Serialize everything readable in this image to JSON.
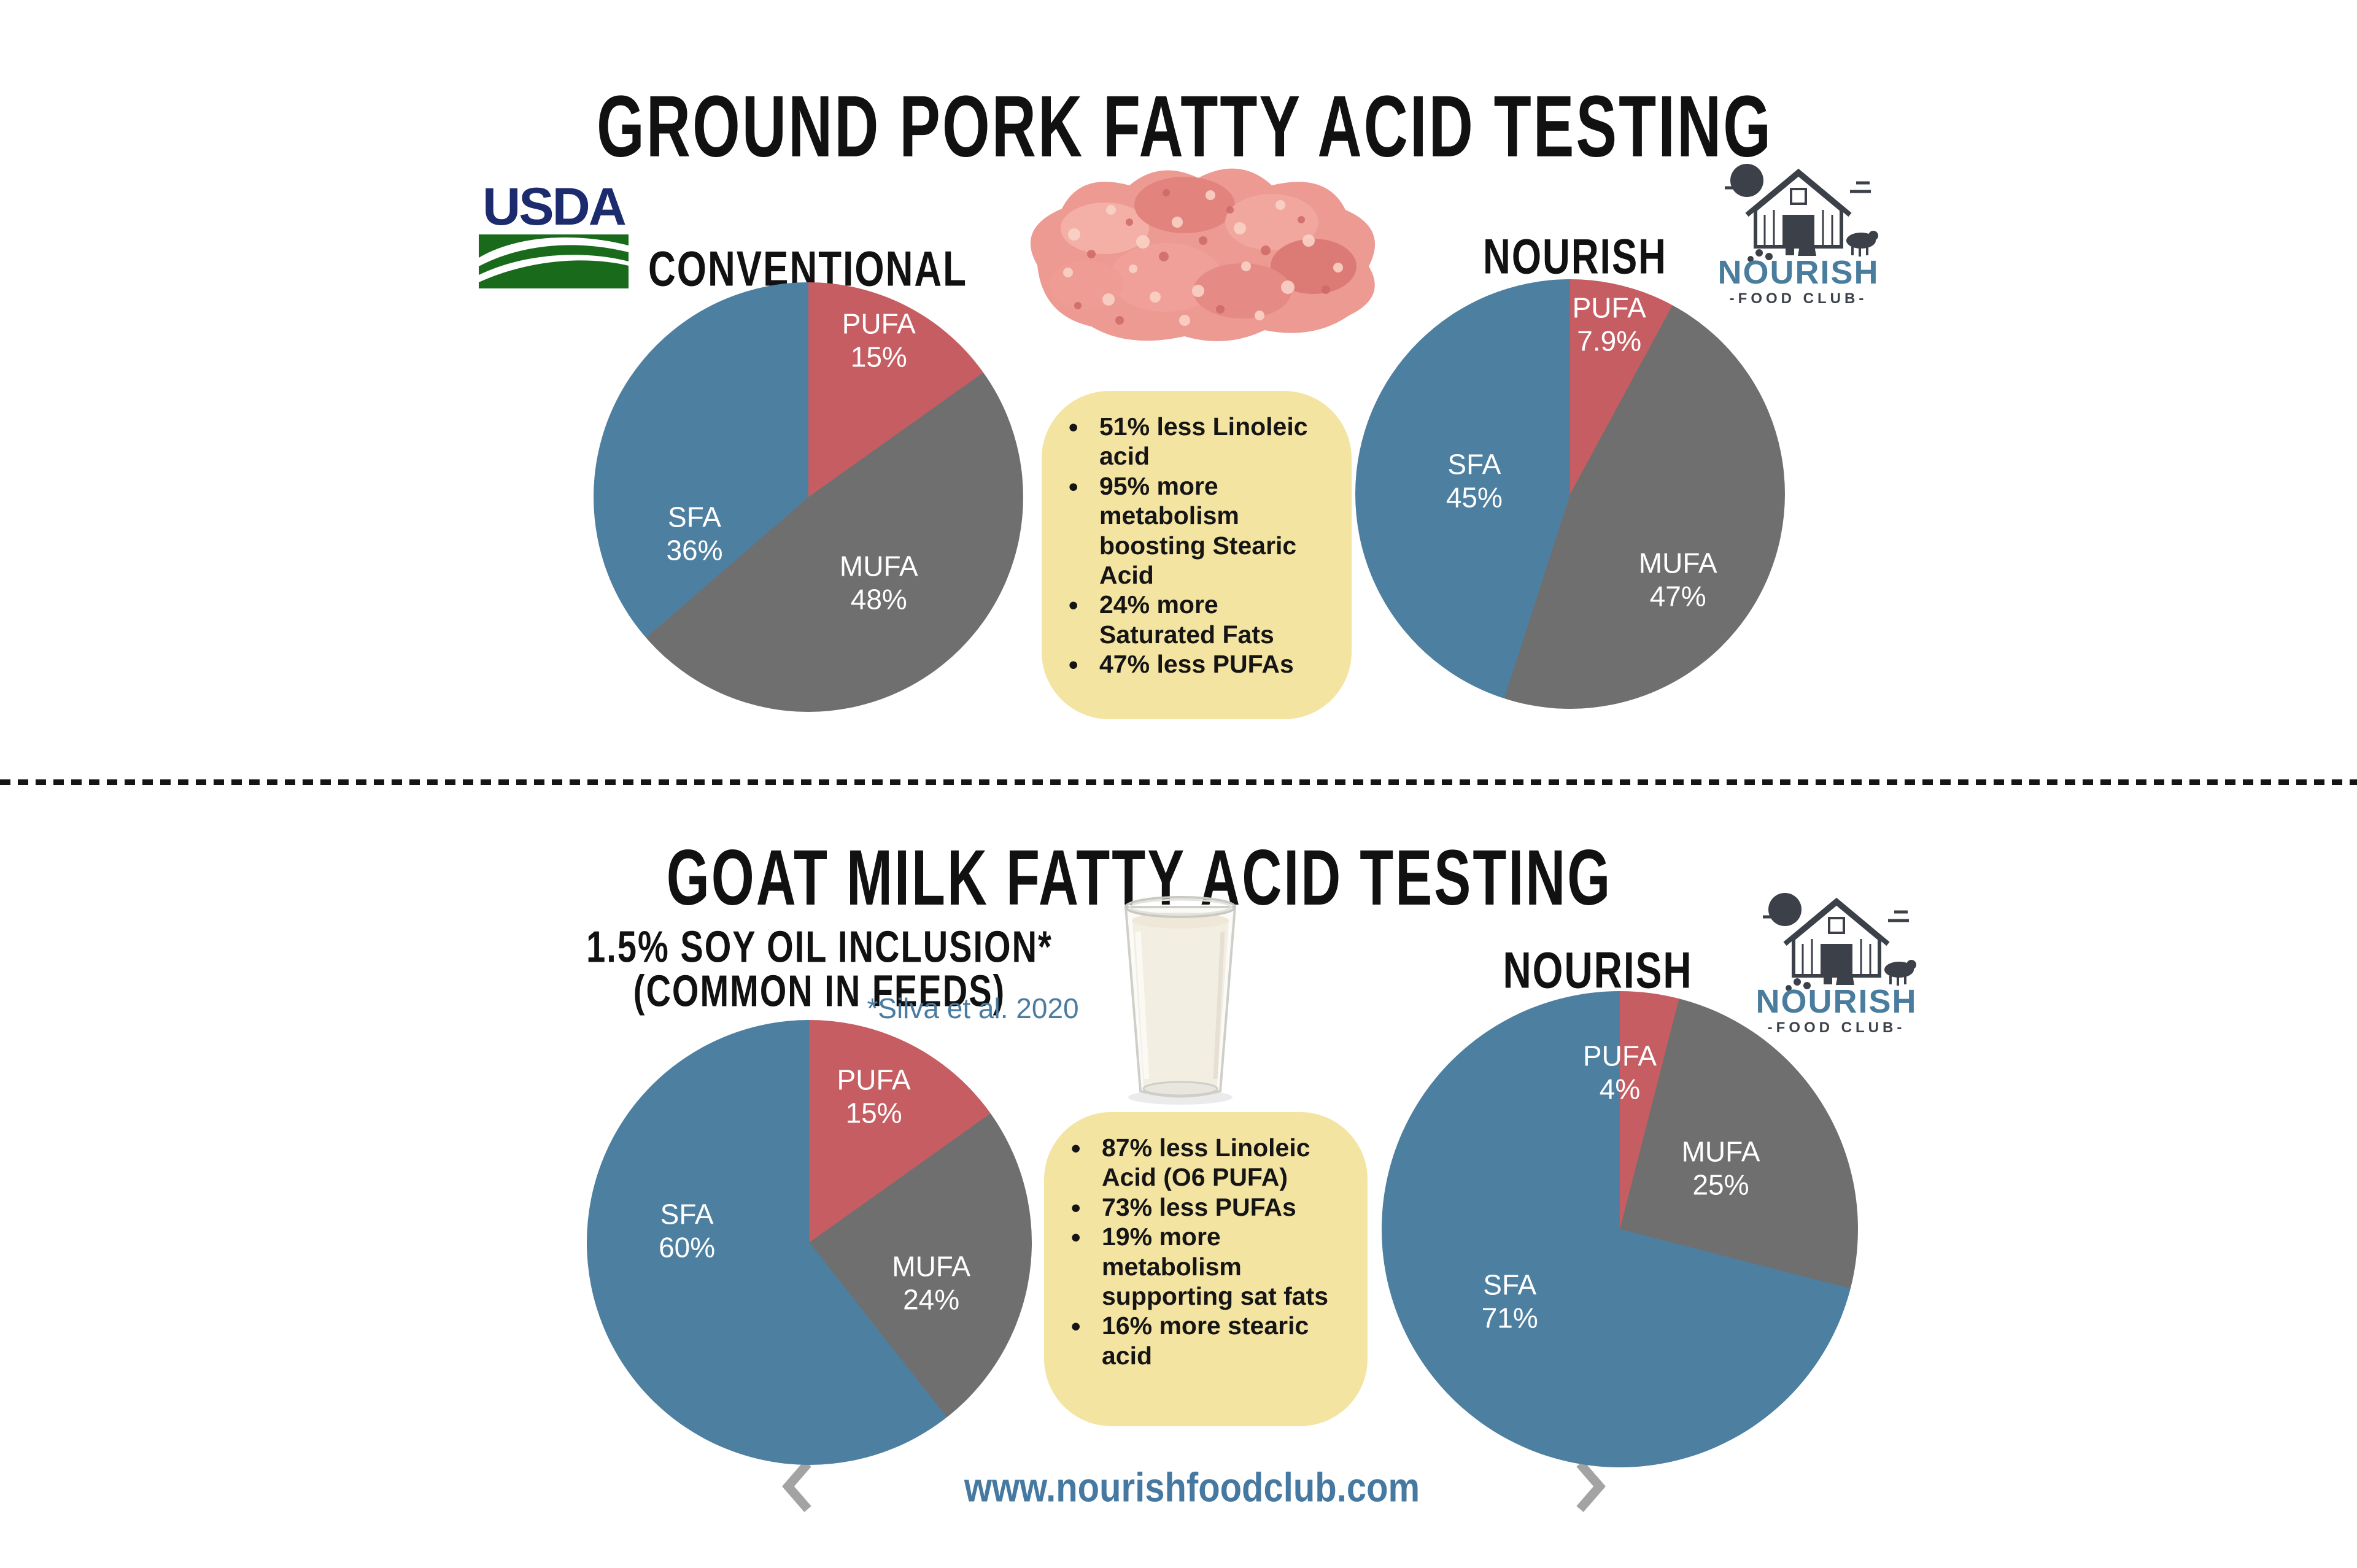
{
  "colors": {
    "blue": "#4D7FA1",
    "red": "#C65D62",
    "gray": "#6F6F6F",
    "callout_yellow": "#F4E4A1",
    "ink": "#111111",
    "link_blue": "#4679A1",
    "chevron_gray": "#A3A3A3",
    "usda_navy": "#1B2B6D",
    "usda_green": "#1A6A1C",
    "logo_ink": "#3C4149"
  },
  "top_section": {
    "title": "GROUND PORK FATTY ACID TESTING",
    "conventional_label": "CONVENTIONAL",
    "nourish_label": "NOURISH",
    "callout_bullets": [
      "51% less Linoleic acid",
      "95% more metabolism boosting Stearic Acid",
      "24% more Saturated Fats",
      "47% less PUFAs"
    ]
  },
  "bottom_section": {
    "title": "GOAT MILK FATTY ACID TESTING",
    "soy_label_line1": "1.5% SOY OIL INCLUSION*",
    "soy_label_line2": "(COMMON IN FEEDS)",
    "citation": "*Silva et al. 2020",
    "nourish_label": "NOURISH",
    "callout_bullets": [
      "87% less Linoleic Acid (O6 PUFA)",
      "73% less PUFAs",
      "19% more metabolism supporting sat fats",
      "16% more stearic acid"
    ]
  },
  "logos": {
    "usda_text": "USDA",
    "nourish_name": "NOURISH",
    "nourish_sub": "-FOOD CLUB-"
  },
  "footer": {
    "url": "www.nourishfoodclub.com"
  },
  "chart_data": [
    {
      "type": "pie",
      "name": "conventional-ground-pork",
      "title": "CONVENTIONAL",
      "categories": [
        "PUFA",
        "MUFA",
        "SFA"
      ],
      "values": [
        15,
        48,
        36
      ],
      "value_labels": [
        "15%",
        "48%",
        "36%"
      ],
      "colors": [
        "#C65D62",
        "#6F6F6F",
        "#4D7FA1"
      ],
      "legend_position": "inside",
      "start_angle_deg": 0,
      "direction": "clockwise"
    },
    {
      "type": "pie",
      "name": "nourish-ground-pork",
      "title": "NOURISH",
      "categories": [
        "PUFA",
        "MUFA",
        "SFA"
      ],
      "values": [
        7.9,
        47,
        45
      ],
      "value_labels": [
        "7.9%",
        "47%",
        "45%"
      ],
      "colors": [
        "#C65D62",
        "#6F6F6F",
        "#4D7FA1"
      ],
      "legend_position": "inside",
      "start_angle_deg": 0,
      "direction": "clockwise"
    },
    {
      "type": "pie",
      "name": "soy-oil-goat-milk",
      "title": "1.5% SOY OIL INCLUSION (COMMON IN FEEDS)",
      "categories": [
        "PUFA",
        "MUFA",
        "SFA"
      ],
      "values": [
        15,
        24,
        60
      ],
      "value_labels": [
        "15%",
        "24%",
        "60%"
      ],
      "colors": [
        "#C65D62",
        "#6F6F6F",
        "#4D7FA1"
      ],
      "legend_position": "inside",
      "start_angle_deg": 0,
      "direction": "clockwise"
    },
    {
      "type": "pie",
      "name": "nourish-goat-milk",
      "title": "NOURISH",
      "categories": [
        "PUFA",
        "MUFA",
        "SFA"
      ],
      "values": [
        4,
        25,
        71
      ],
      "value_labels": [
        "4%",
        "25%",
        "71%"
      ],
      "colors": [
        "#C65D62",
        "#6F6F6F",
        "#4D7FA1"
      ],
      "legend_position": "inside",
      "start_angle_deg": 0,
      "direction": "clockwise"
    }
  ]
}
